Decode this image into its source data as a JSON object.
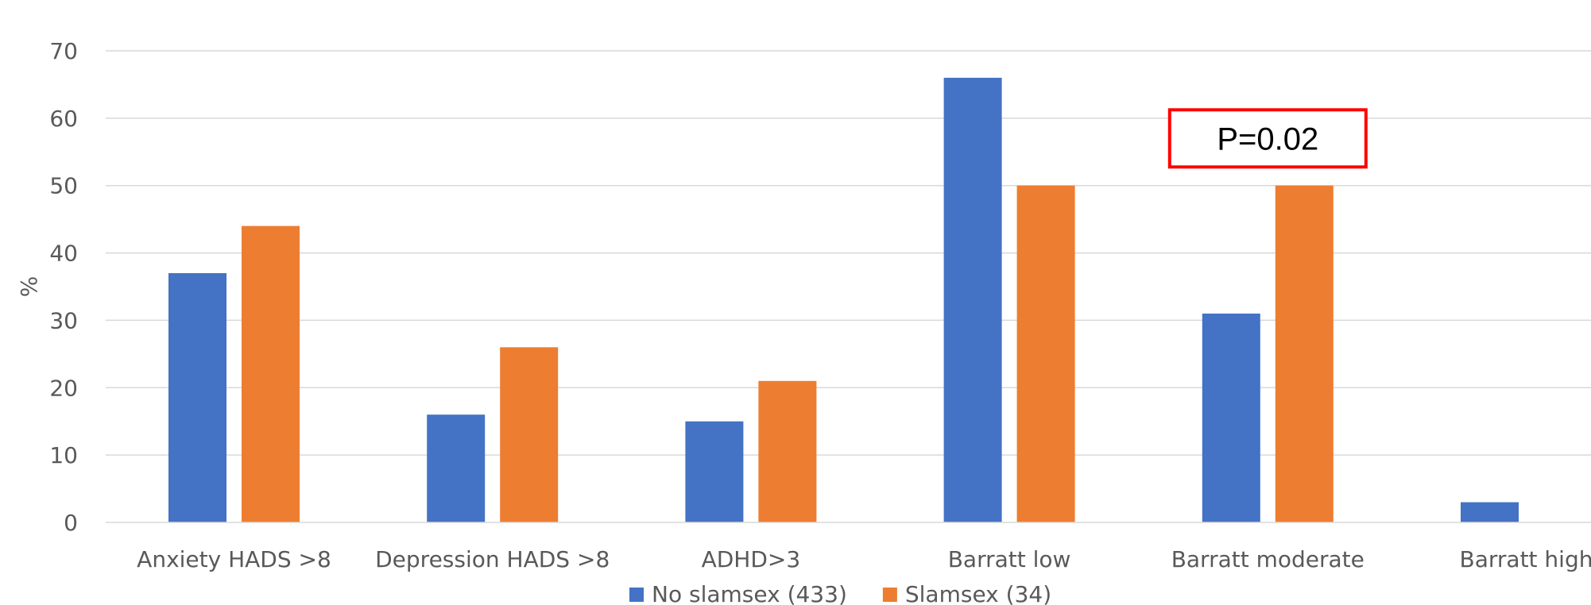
{
  "chart_data": {
    "type": "bar",
    "title": "",
    "xlabel": "",
    "ylabel": "%",
    "ylim": [
      0,
      70
    ],
    "yticks": [
      0,
      10,
      20,
      30,
      40,
      50,
      60,
      70
    ],
    "grid": true,
    "legend_position": "bottom",
    "categories": [
      "Anxiety HADS >8",
      "Depression HADS >8",
      "ADHD>3",
      "Barratt low",
      "Barratt moderate",
      "Barratt high"
    ],
    "series": [
      {
        "name": "No slamsex (433)",
        "color": "#4472C4",
        "values": [
          37,
          16,
          15,
          66,
          31,
          3
        ]
      },
      {
        "name": "Slamsex (34)",
        "color": "#ED7D31",
        "values": [
          44,
          26,
          21,
          50,
          50,
          0
        ]
      }
    ],
    "annotations": [
      {
        "text": "P=0.02",
        "category": "Barratt moderate",
        "y": 57,
        "border_color": "#FF0000"
      }
    ]
  }
}
